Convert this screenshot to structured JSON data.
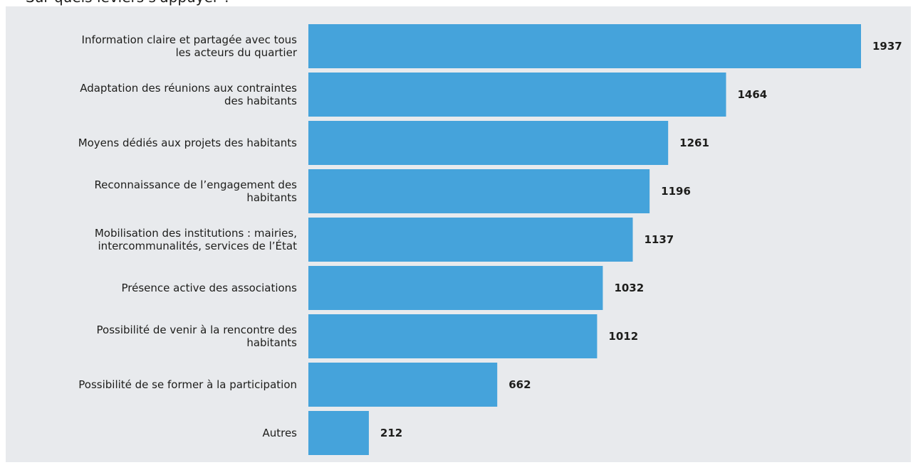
{
  "page": {
    "cut_title": "Sur quels leviers s'appuyer ?"
  },
  "colors": {
    "panel_background": "#e8eaed",
    "bar_fill": "#45a3db",
    "text": "#1d1d1b"
  },
  "chart_data": {
    "type": "bar",
    "orientation": "horizontal",
    "title": "",
    "xlabel": "",
    "ylabel": "",
    "grid": false,
    "categories": [
      [
        "Information claire et partagée avec tous",
        "les acteurs du quartier"
      ],
      [
        "Adaptation des réunions aux contraintes",
        "des habitants"
      ],
      [
        "Moyens dédiés aux projets des habitants"
      ],
      [
        "Reconnaissance de l’engagement des",
        "habitants"
      ],
      [
        "Mobilisation des institutions : mairies,",
        "intercommunalités, services de l’État"
      ],
      [
        "Présence active des associations"
      ],
      [
        "Possibilité de venir à la rencontre des",
        "habitants"
      ],
      [
        "Possibilité de se former à la participation"
      ],
      [
        "Autres"
      ]
    ],
    "values": [
      1937,
      1464,
      1261,
      1196,
      1137,
      1032,
      1012,
      662,
      212
    ],
    "value_labels": [
      "1937",
      "1464",
      "1261",
      "1196",
      "1137",
      "1032",
      "1012",
      "662",
      "212"
    ],
    "xlim": [
      0,
      1937
    ]
  }
}
